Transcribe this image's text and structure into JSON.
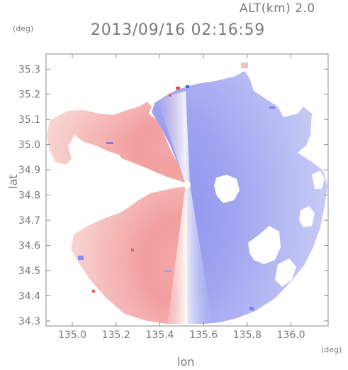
{
  "chart_data": {
    "type": "heatmap",
    "title": "2013/09/16 02:16:59",
    "subtitle": "ALT(km) 2.0",
    "xlabel": "lon",
    "ylabel": "lat",
    "x_unit": "(deg)",
    "y_unit": "(deg)",
    "xlim": [
      134.88,
      136.17
    ],
    "ylim": [
      34.28,
      35.36
    ],
    "x_ticks": [
      135.0,
      135.2,
      135.4,
      135.6,
      135.8,
      136.0
    ],
    "x_tick_labels": [
      "135.0",
      "135.2",
      "135.4",
      "135.6",
      "135.8",
      "136.0"
    ],
    "y_ticks": [
      34.3,
      34.4,
      34.5,
      34.6,
      34.7,
      34.8,
      34.9,
      35.0,
      35.1,
      35.2,
      35.3
    ],
    "y_tick_labels": [
      "34.3",
      "34.4",
      "34.5",
      "34.6",
      "34.7",
      "34.8",
      "34.9",
      "35.0",
      "35.1",
      "35.2",
      "35.3"
    ],
    "radar_center": {
      "lon": 135.52,
      "lat": 34.82
    },
    "colors": {
      "positive": "#f08a8a",
      "negative": "#8a8ef0",
      "neutral": "#ffffff",
      "axis": "#8a8a8a"
    },
    "grid": false
  }
}
